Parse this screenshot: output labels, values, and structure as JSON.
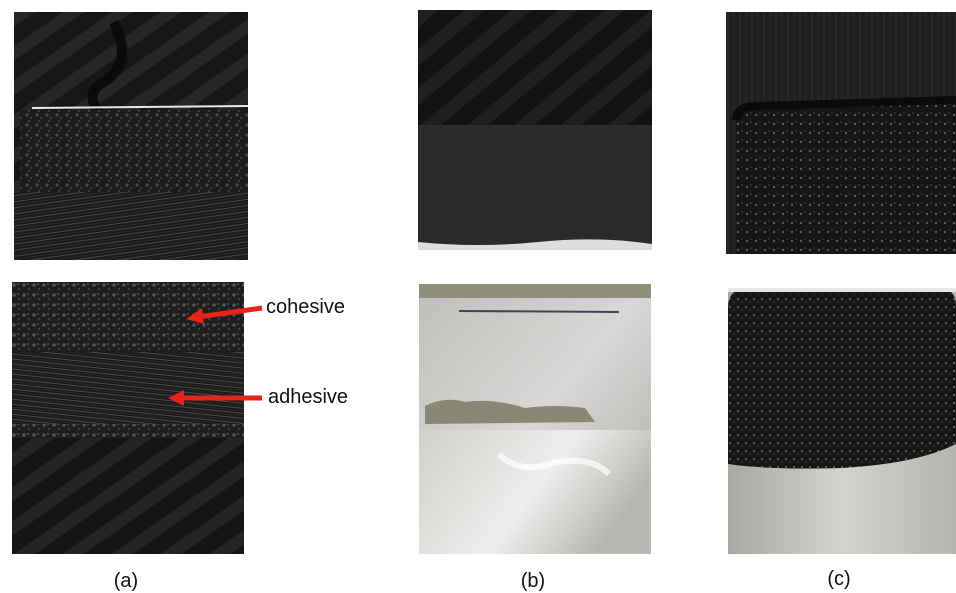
{
  "annotations": {
    "cohesive": "cohesive",
    "adhesive": "adhesive"
  },
  "panel_labels": {
    "a": "(a)",
    "b": "(b)",
    "c": "(c)"
  },
  "colors": {
    "arrow": "#e8231a",
    "carbon": "#1a1a1a",
    "aluminum": "#c4c6c2"
  }
}
